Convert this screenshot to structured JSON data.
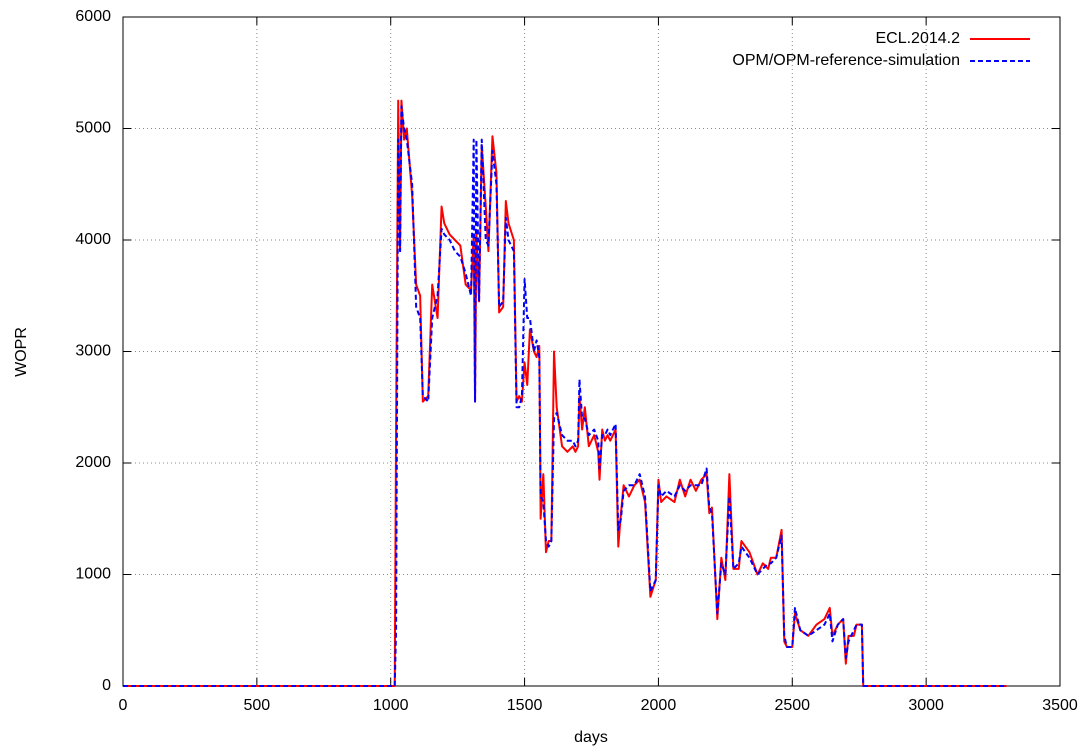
{
  "chart_data": {
    "type": "line",
    "xlabel": "days",
    "ylabel": "WOPR",
    "x": [
      0,
      1015,
      1020,
      1028,
      1035,
      1040,
      1050,
      1060,
      1080,
      1095,
      1110,
      1120,
      1140,
      1155,
      1175,
      1190,
      1200,
      1220,
      1240,
      1260,
      1280,
      1300,
      1310,
      1315,
      1320,
      1330,
      1340,
      1355,
      1365,
      1380,
      1395,
      1405,
      1420,
      1430,
      1440,
      1460,
      1470,
      1480,
      1490,
      1500,
      1510,
      1520,
      1535,
      1545,
      1555,
      1560,
      1570,
      1580,
      1590,
      1600,
      1610,
      1620,
      1640,
      1660,
      1680,
      1690,
      1700,
      1705,
      1715,
      1725,
      1740,
      1760,
      1775,
      1780,
      1790,
      1800,
      1810,
      1820,
      1840,
      1850,
      1860,
      1870,
      1890,
      1910,
      1930,
      1950,
      1970,
      1990,
      2000,
      2010,
      2030,
      2060,
      2080,
      2100,
      2120,
      2140,
      2160,
      2180,
      2190,
      2200,
      2220,
      2235,
      2250,
      2265,
      2280,
      2300,
      2310,
      2340,
      2370,
      2390,
      2410,
      2420,
      2440,
      2460,
      2470,
      2480,
      2500,
      2510,
      2530,
      2560,
      2590,
      2620,
      2640,
      2650,
      2670,
      2690,
      2700,
      2710,
      2730,
      2740,
      2760,
      2765,
      3300
    ],
    "series": [
      {
        "name": "ECL.2014.2",
        "color": "#ff0000",
        "dash": false,
        "values": [
          0,
          0,
          2300,
          5250,
          3900,
          5250,
          4900,
          5000,
          4400,
          3600,
          3500,
          2550,
          2600,
          3600,
          3300,
          4300,
          4150,
          4050,
          4000,
          3950,
          3600,
          3550,
          4050,
          2550,
          4050,
          3450,
          4850,
          4300,
          3900,
          4930,
          4600,
          3350,
          3400,
          4350,
          4150,
          4000,
          2550,
          2600,
          2550,
          2900,
          2700,
          3200,
          3000,
          2950,
          3050,
          1500,
          1900,
          1200,
          1300,
          1300,
          3000,
          2500,
          2150,
          2100,
          2150,
          2100,
          2150,
          2600,
          2300,
          2500,
          2150,
          2250,
          2100,
          1850,
          2300,
          2200,
          2250,
          2200,
          2300,
          1250,
          1550,
          1800,
          1700,
          1800,
          1850,
          1650,
          800,
          950,
          1850,
          1650,
          1700,
          1650,
          1850,
          1700,
          1850,
          1750,
          1850,
          1900,
          1550,
          1600,
          600,
          1150,
          950,
          1900,
          1050,
          1050,
          1300,
          1200,
          1000,
          1100,
          1050,
          1150,
          1150,
          1400,
          400,
          350,
          350,
          650,
          500,
          450,
          550,
          600,
          700,
          450,
          550,
          600,
          200,
          450,
          450,
          550,
          550,
          0,
          0
        ]
      },
      {
        "name": "OPM/OPM-reference-simulation",
        "color": "#0000ff",
        "dash": true,
        "values": [
          0,
          0,
          500,
          4900,
          3900,
          5200,
          5000,
          4900,
          4500,
          3400,
          3300,
          2600,
          2550,
          3300,
          3500,
          4100,
          4050,
          4000,
          3900,
          3850,
          3700,
          3500,
          4900,
          2550,
          4900,
          3450,
          4900,
          4000,
          3950,
          4800,
          4500,
          3400,
          3450,
          4200,
          4000,
          3900,
          2500,
          2500,
          2600,
          3650,
          3300,
          3300,
          3000,
          3100,
          2950,
          1700,
          1650,
          1300,
          1250,
          1300,
          2400,
          2450,
          2250,
          2200,
          2200,
          2150,
          2200,
          2750,
          2400,
          2400,
          2250,
          2300,
          2200,
          1950,
          2250,
          2250,
          2300,
          2250,
          2350,
          1400,
          1500,
          1750,
          1800,
          1800,
          1900,
          1700,
          850,
          950,
          1800,
          1700,
          1750,
          1700,
          1800,
          1750,
          1800,
          1800,
          1800,
          1950,
          1600,
          1550,
          650,
          1100,
          1000,
          1700,
          1050,
          1100,
          1250,
          1150,
          1000,
          1050,
          1100,
          1100,
          1150,
          1350,
          450,
          350,
          350,
          700,
          500,
          450,
          500,
          550,
          650,
          400,
          550,
          600,
          250,
          400,
          500,
          550,
          550,
          0,
          0
        ]
      }
    ],
    "xlim": [
      0,
      3500
    ],
    "xticks": [
      0,
      500,
      1000,
      1500,
      2000,
      2500,
      3000,
      3500
    ],
    "ylim": [
      0,
      6000
    ],
    "yticks": [
      0,
      1000,
      2000,
      3000,
      4000,
      5000,
      6000
    ],
    "grid": true,
    "legend": "top-right"
  }
}
